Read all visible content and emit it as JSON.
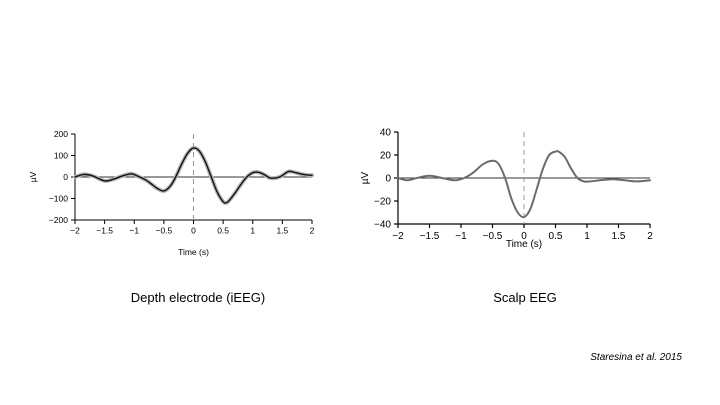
{
  "chart_data": [
    {
      "type": "line",
      "title": "",
      "xlabel": "Time (s)",
      "ylabel": "µV",
      "xlim": [
        -2,
        2
      ],
      "ylim": [
        -200,
        200
      ],
      "xticks": [
        -2,
        -1.5,
        -1,
        -0.5,
        0,
        0.5,
        1,
        1.5,
        2
      ],
      "xtick_labels": [
        "−2",
        "−1.5",
        "−1",
        "−0.5",
        "0",
        "0.5",
        "1",
        "1.5",
        "2"
      ],
      "yticks": [
        200,
        100,
        0,
        -100,
        -200
      ],
      "ytick_labels": [
        "200",
        "100",
        "0",
        "−100",
        "−200"
      ],
      "grid": false,
      "reference_lines": {
        "horizontal_at_y": 0,
        "vertical_dashed_at_x": 0
      },
      "series": [
        {
          "color": "#111111",
          "x": [
            -2,
            -1.85,
            -1.7,
            -1.5,
            -1.35,
            -1.2,
            -1.05,
            -0.95,
            -0.8,
            -0.7,
            -0.6,
            -0.5,
            -0.4,
            -0.3,
            -0.2,
            -0.1,
            0,
            0.1,
            0.2,
            0.3,
            0.4,
            0.5,
            0.55,
            0.6,
            0.7,
            0.8,
            0.9,
            1.0,
            1.1,
            1.2,
            1.3,
            1.45,
            1.6,
            1.7,
            1.8,
            1.9,
            2.0
          ],
          "values": [
            0,
            12,
            5,
            -18,
            -10,
            5,
            15,
            5,
            -15,
            -35,
            -55,
            -65,
            -45,
            0,
            60,
            110,
            135,
            120,
            70,
            0,
            -70,
            -115,
            -120,
            -110,
            -75,
            -35,
            0,
            20,
            22,
            10,
            -5,
            0,
            25,
            22,
            15,
            10,
            8
          ]
        }
      ]
    },
    {
      "type": "line",
      "title": "",
      "xlabel": "Time (s)",
      "ylabel": "µV",
      "xlim": [
        -2,
        2
      ],
      "ylim": [
        -40,
        40
      ],
      "xticks": [
        -2,
        -1.5,
        -1,
        -0.5,
        0,
        0.5,
        1,
        1.5,
        2
      ],
      "xtick_labels": [
        "−2",
        "−1.5",
        "−1",
        "−0.5",
        "0",
        "0.5",
        "1",
        "1.5",
        "2"
      ],
      "yticks": [
        40,
        20,
        0,
        -20,
        -40
      ],
      "ytick_labels": [
        "40",
        "20",
        "0",
        "−20",
        "−40"
      ],
      "grid": false,
      "reference_lines": {
        "horizontal_at_y": 0,
        "vertical_dashed_at_x": 0
      },
      "series": [
        {
          "color": "#6b6b6b",
          "x": [
            -2,
            -1.85,
            -1.7,
            -1.5,
            -1.3,
            -1.1,
            -0.95,
            -0.8,
            -0.65,
            -0.5,
            -0.4,
            -0.3,
            -0.2,
            -0.1,
            0,
            0.1,
            0.2,
            0.3,
            0.4,
            0.5,
            0.55,
            0.65,
            0.75,
            0.85,
            0.95,
            1.05,
            1.2,
            1.4,
            1.6,
            1.8,
            2.0
          ],
          "values": [
            0,
            -2,
            0,
            2,
            0,
            -2,
            0,
            5,
            12,
            15,
            12,
            0,
            -18,
            -30,
            -34,
            -27,
            -10,
            8,
            20,
            23,
            23,
            18,
            8,
            0,
            -3,
            -3,
            -2,
            -1,
            -2,
            -3,
            -2
          ]
        }
      ]
    }
  ],
  "captions": {
    "left": "Depth electrode (iEEG)",
    "right": "Scalp EEG"
  },
  "citation": "Staresina et al. 2015"
}
